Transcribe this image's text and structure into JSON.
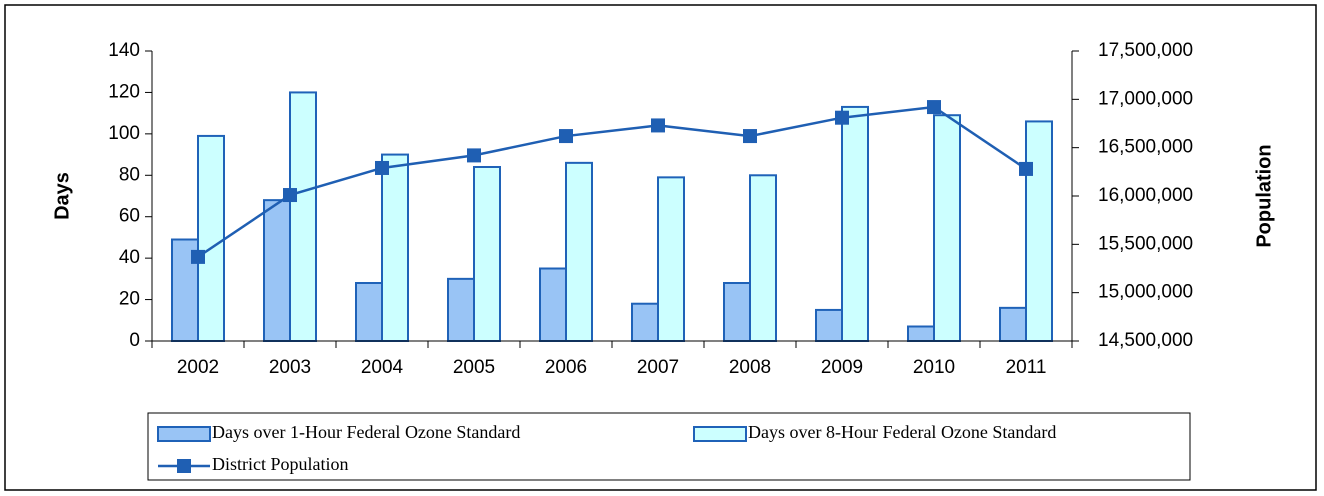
{
  "chart_data": {
    "type": "bar",
    "categories": [
      "2002",
      "2003",
      "2004",
      "2005",
      "2006",
      "2007",
      "2008",
      "2009",
      "2010",
      "2011"
    ],
    "series": [
      {
        "name": "Days over 1-Hour Federal Ozone Standard",
        "type": "bar",
        "color": "#99c4f5",
        "values": [
          49,
          68,
          28,
          30,
          35,
          18,
          28,
          15,
          7,
          16
        ]
      },
      {
        "name": "Days over 8-Hour Federal Ozone Standard",
        "type": "bar",
        "color": "#ccffff",
        "values": [
          99,
          120,
          90,
          84,
          86,
          79,
          80,
          113,
          109,
          106
        ]
      },
      {
        "name": "District Population",
        "type": "line",
        "axis": "y2",
        "color": "#1f5fb3",
        "values": [
          15370000,
          16010000,
          16290000,
          16420000,
          16620000,
          16730000,
          16620000,
          16810000,
          16920000,
          16280000
        ]
      }
    ],
    "ylabel": "Days",
    "y2label": "Population",
    "ylim": [
      0,
      140
    ],
    "yticks": [
      0,
      20,
      40,
      60,
      80,
      100,
      120,
      140
    ],
    "y2lim": [
      14500000,
      17500000
    ],
    "y2ticks": [
      {
        "value": 14500000,
        "label": "14,500,000"
      },
      {
        "value": 15000000,
        "label": "15,000,000"
      },
      {
        "value": 15500000,
        "label": "15,500,000"
      },
      {
        "value": 16000000,
        "label": "16,000,000"
      },
      {
        "value": 16500000,
        "label": "16,500,000"
      },
      {
        "value": 17000000,
        "label": "17,000,000"
      },
      {
        "value": 17500000,
        "label": "17,500,000"
      }
    ],
    "legend": "bottom"
  }
}
